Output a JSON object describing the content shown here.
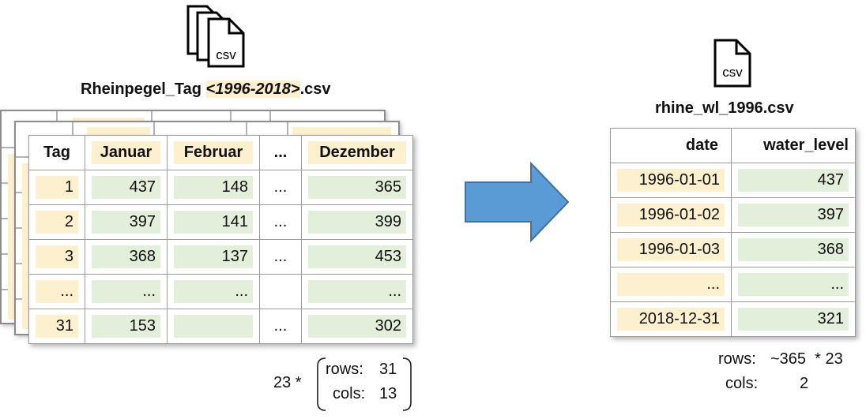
{
  "left": {
    "file_icon_text": "csv",
    "file_title_prefix": "Rheinpegel_Tag ",
    "file_title_range": "<1996-2018>",
    "file_title_suffix": ".csv",
    "headers": [
      "Tag",
      "Januar",
      "Februar",
      "...",
      "Dezember"
    ],
    "rows": [
      [
        "1",
        "437",
        "148",
        "...",
        "365"
      ],
      [
        "2",
        "397",
        "141",
        "...",
        "399"
      ],
      [
        "3",
        "368",
        "137",
        "...",
        "453"
      ],
      [
        "...",
        "...",
        "...",
        "",
        "..."
      ],
      [
        "31",
        "153",
        "",
        "...",
        "302"
      ]
    ],
    "multiplier": "23 *",
    "rows_label": "rows:",
    "rows_value": "31",
    "cols_label": "cols:",
    "cols_value": "13"
  },
  "right": {
    "file_icon_text": "csv",
    "file_title": "rhine_wl_1996.csv",
    "headers": [
      "date",
      "water_level"
    ],
    "rows": [
      [
        "1996-01-01",
        "437"
      ],
      [
        "1996-01-02",
        "397"
      ],
      [
        "1996-01-03",
        "368"
      ],
      [
        "...",
        "..."
      ],
      [
        "2018-12-31",
        "321"
      ]
    ],
    "rows_label": "rows:",
    "rows_value": "~365  * 23",
    "cols_label": "cols:",
    "cols_value": "2"
  },
  "colors": {
    "arrow": "#5b9bd5",
    "arrow_stroke": "#41719c",
    "highlight_yellow": "#fdf0cf",
    "highlight_green": "#e3efda"
  }
}
